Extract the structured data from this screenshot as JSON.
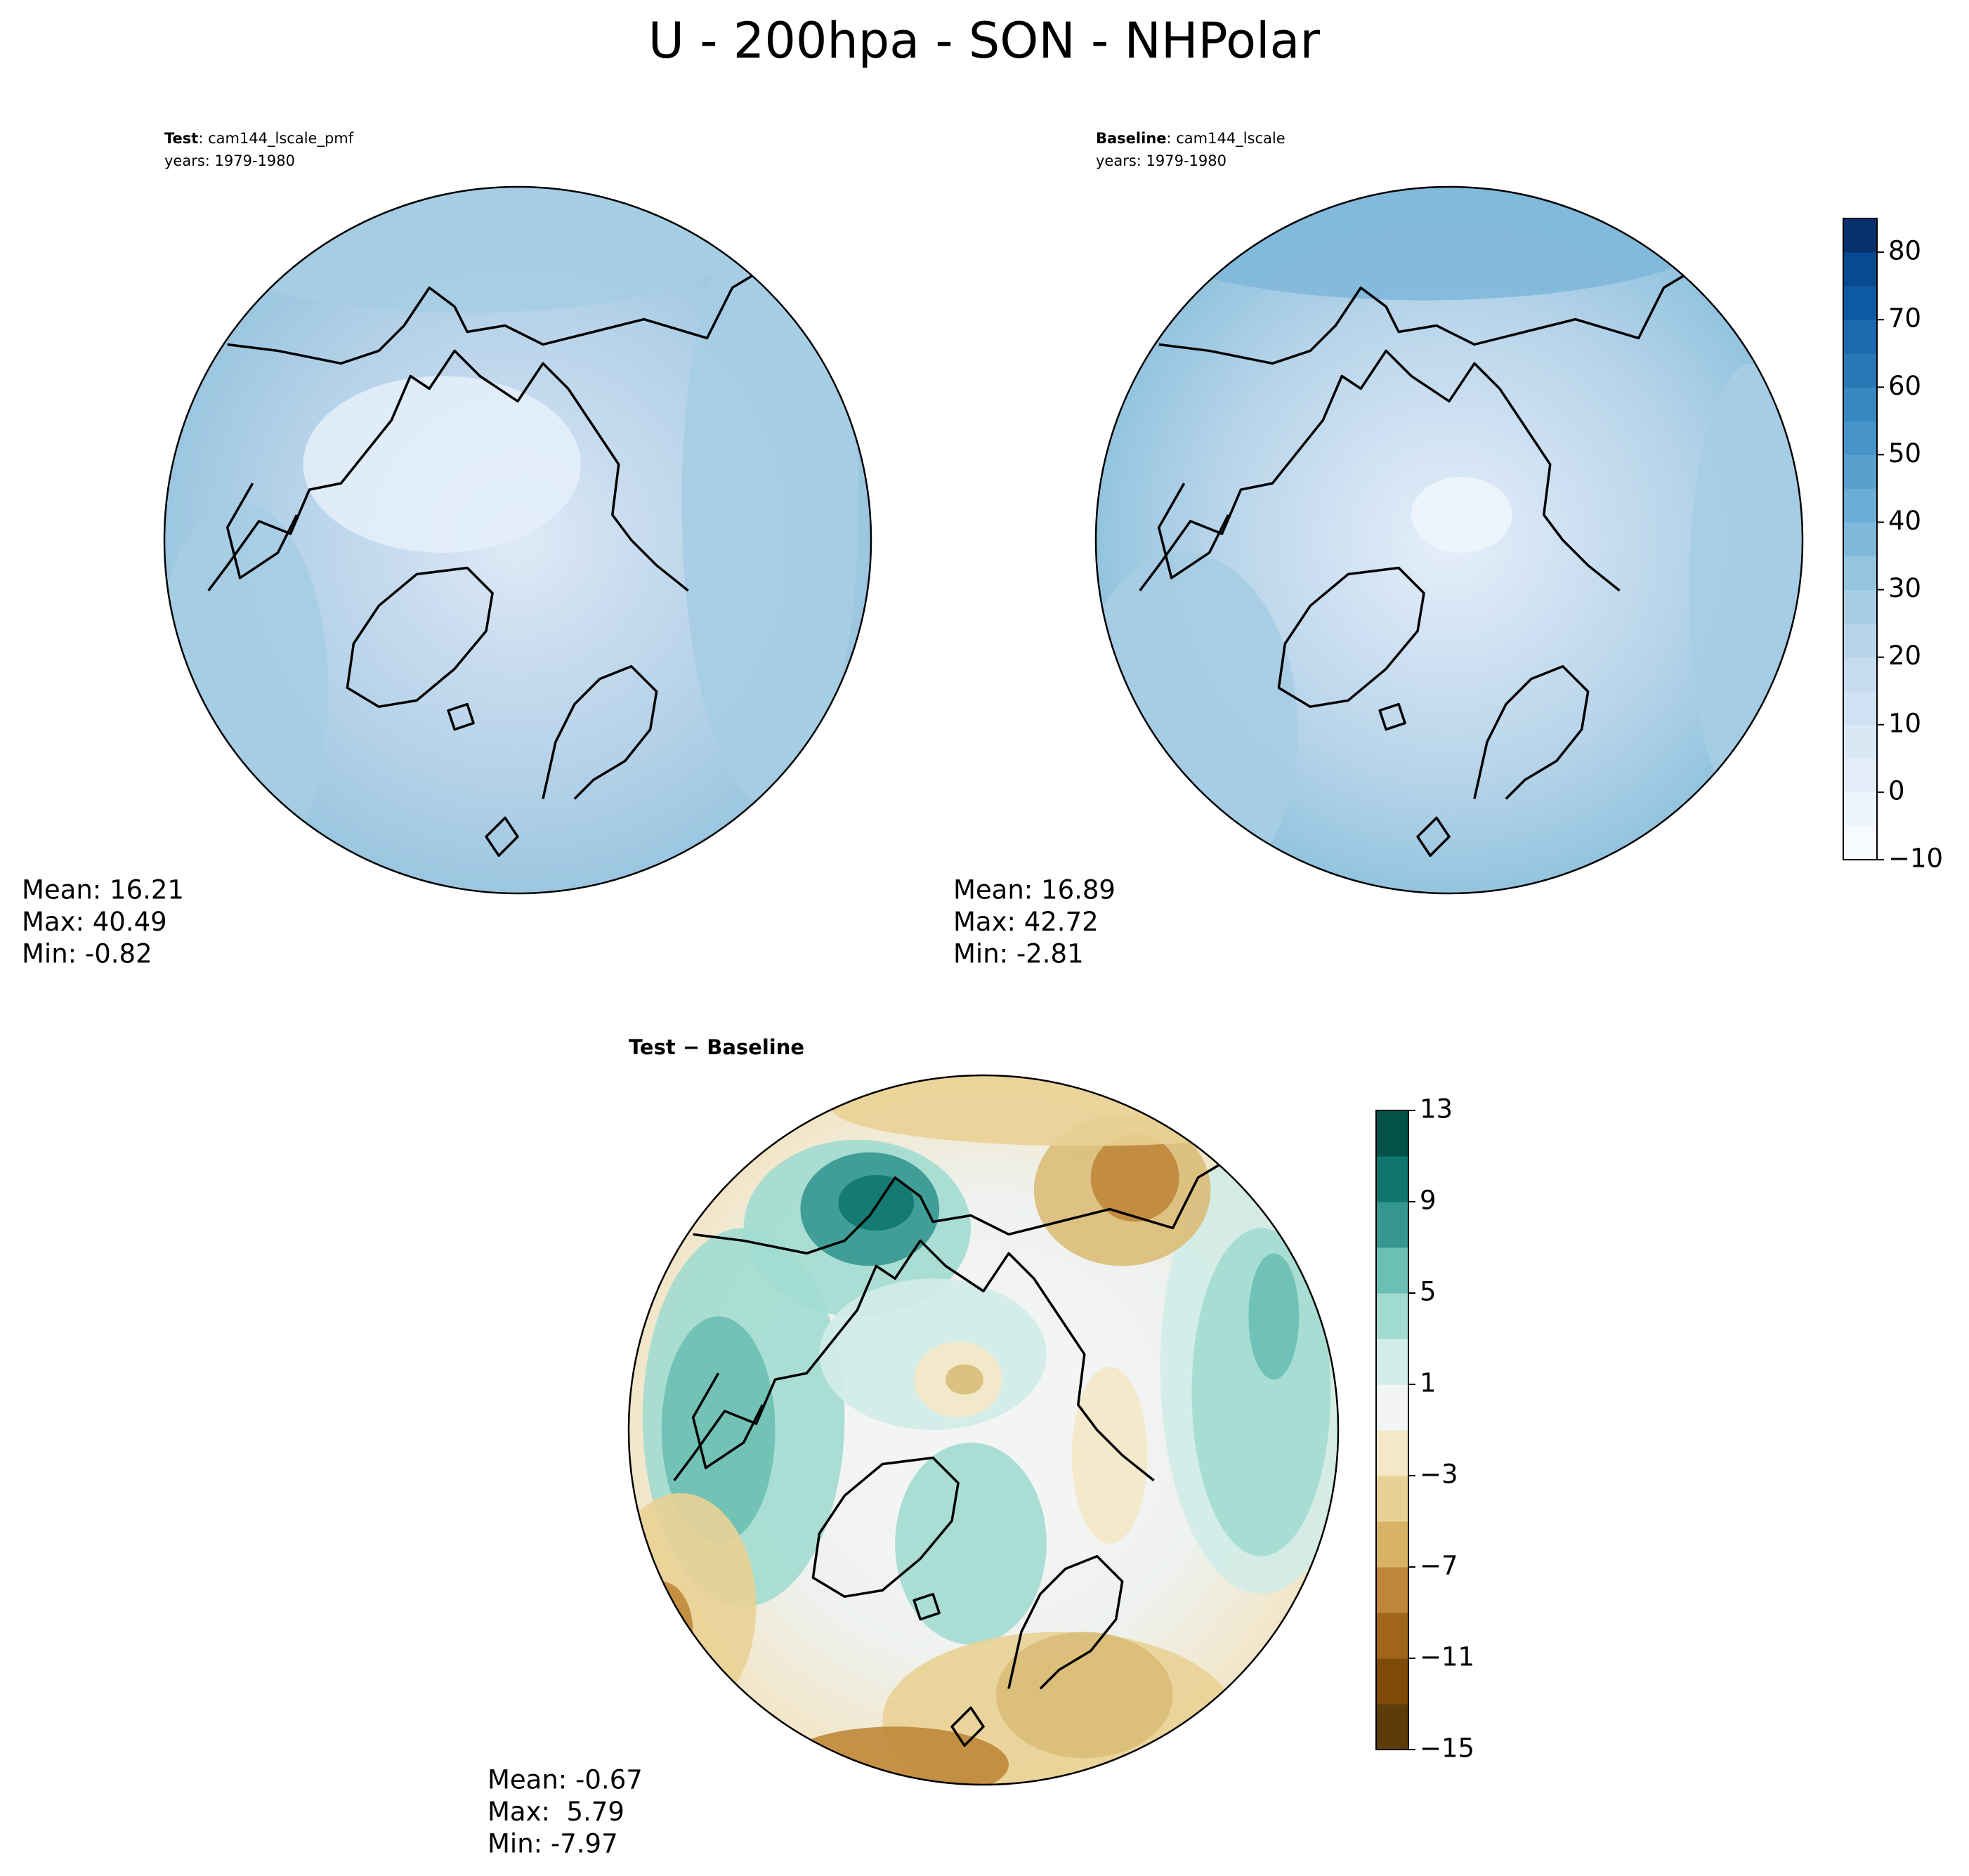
{
  "title": "U - 200hpa - SON - NHPolar",
  "panels": [
    {
      "label": "Test",
      "case": ": cam144_lscale_pmf",
      "years": "years: 1979-1980",
      "stats": [
        "Mean: 16.21",
        "Max: 40.49",
        "Min: -0.82"
      ]
    },
    {
      "label": "Baseline",
      "case": ": cam144_lscale",
      "years": "years: 1979-1980",
      "stats": [
        "Mean: 16.89",
        "Max: 42.72",
        "Min: -2.81"
      ]
    },
    {
      "label": "Test − Baseline",
      "stats": [
        "Mean: -0.67",
        "Max:  5.79",
        "Min: -7.97"
      ]
    }
  ],
  "colorbars": [
    {
      "lim": [
        -10,
        85
      ],
      "ticks": [
        {
          "value": -10,
          "label": "−10"
        },
        0,
        10,
        20,
        30,
        40,
        50,
        60,
        70,
        80
      ],
      "colors": [
        "#f7fbff",
        "#eef5fc",
        "#e3eef9",
        "#dae8f6",
        "#cfe1f2",
        "#c6dbef",
        "#b7d4ea",
        "#a6cde4",
        "#94c4df",
        "#7fb8da",
        "#6aaed6",
        "#58a1cf",
        "#4694c7",
        "#3787c0",
        "#2878b8",
        "#1b69af",
        "#0d59a2",
        "#084a91",
        "#08306b"
      ]
    },
    {
      "lim": [
        -15,
        13
      ],
      "ticks": [
        {
          "value": -15,
          "label": "−15"
        },
        {
          "value": -11,
          "label": "−11"
        },
        {
          "value": -7,
          "label": "−7"
        },
        {
          "value": -3,
          "label": "−3"
        },
        1,
        5,
        9,
        13
      ],
      "colors": [
        "#5e3c0a",
        "#7f4b08",
        "#a0651b",
        "#bf8739",
        "#d8b366",
        "#e9d195",
        "#f4e8c6",
        "#f3f5f4",
        "#d2ece8",
        "#a2dbd0",
        "#6cbfb3",
        "#35978f",
        "#0f766e",
        "#02524a"
      ]
    }
  ]
}
